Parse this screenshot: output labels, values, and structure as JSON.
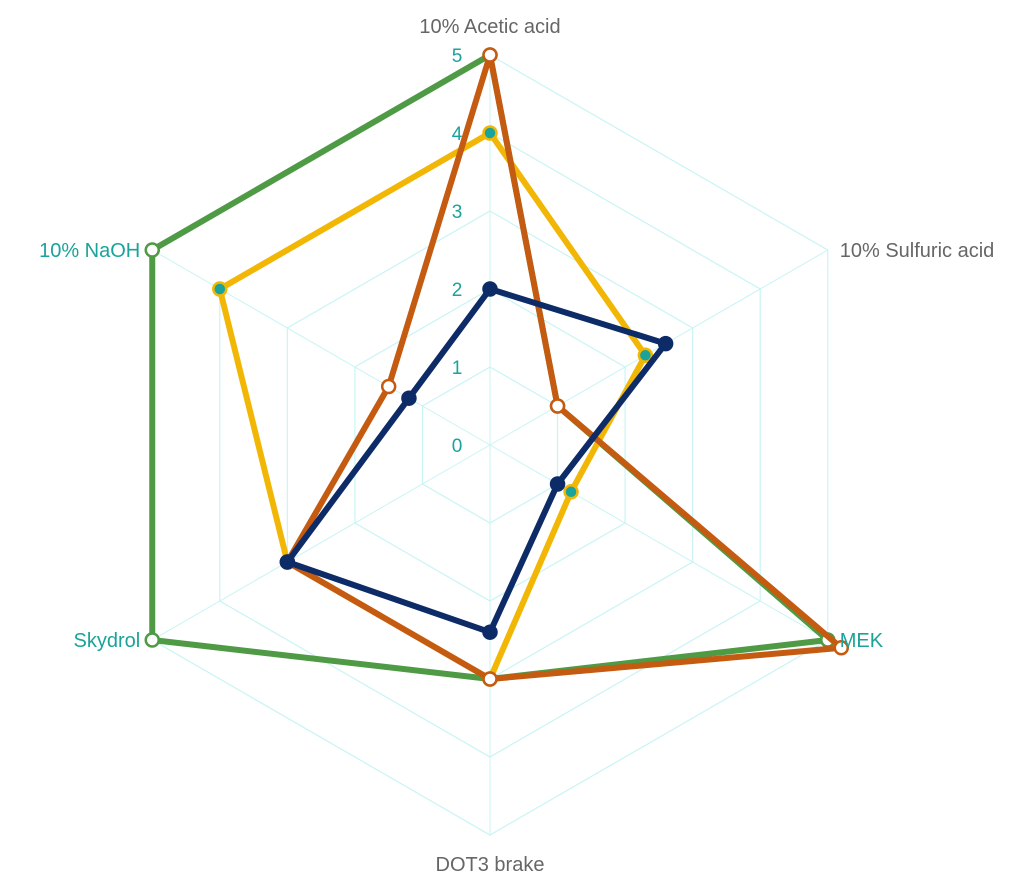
{
  "chart_data": {
    "type": "radar",
    "categories": [
      "10% Acetic acid",
      "10% Sulfuric acid",
      "MEK",
      "DOT3 brake",
      "Skydrol",
      "10% NaOH"
    ],
    "category_colors": [
      "#666666",
      "#666666",
      "#1aa39a",
      "#666666",
      "#1aa39a",
      "#1aa39a"
    ],
    "scale": {
      "min": 0,
      "max": 5,
      "ticks": [
        0,
        1,
        2,
        3,
        4,
        5
      ]
    },
    "grid": true,
    "grid_color": "#c9f4f4",
    "tick_color": "#1aa39a",
    "series": [
      {
        "color": "#4e9a45",
        "marker_fill": "#ffffff",
        "values": [
          5,
          1,
          5,
          3,
          5,
          5
        ]
      },
      {
        "color": "#f2b705",
        "marker_fill": "#1aa39a",
        "values": [
          4,
          2.3,
          1.2,
          3,
          3,
          4
        ]
      },
      {
        "color": "#c55a11",
        "marker_fill": "#ffffff",
        "values": [
          5,
          1,
          5.2,
          3,
          3,
          1.5
        ]
      },
      {
        "color": "#0d2b67",
        "marker_fill": "#0d2b67",
        "values": [
          2,
          2.6,
          1,
          2.4,
          3,
          1.2
        ]
      }
    ]
  }
}
